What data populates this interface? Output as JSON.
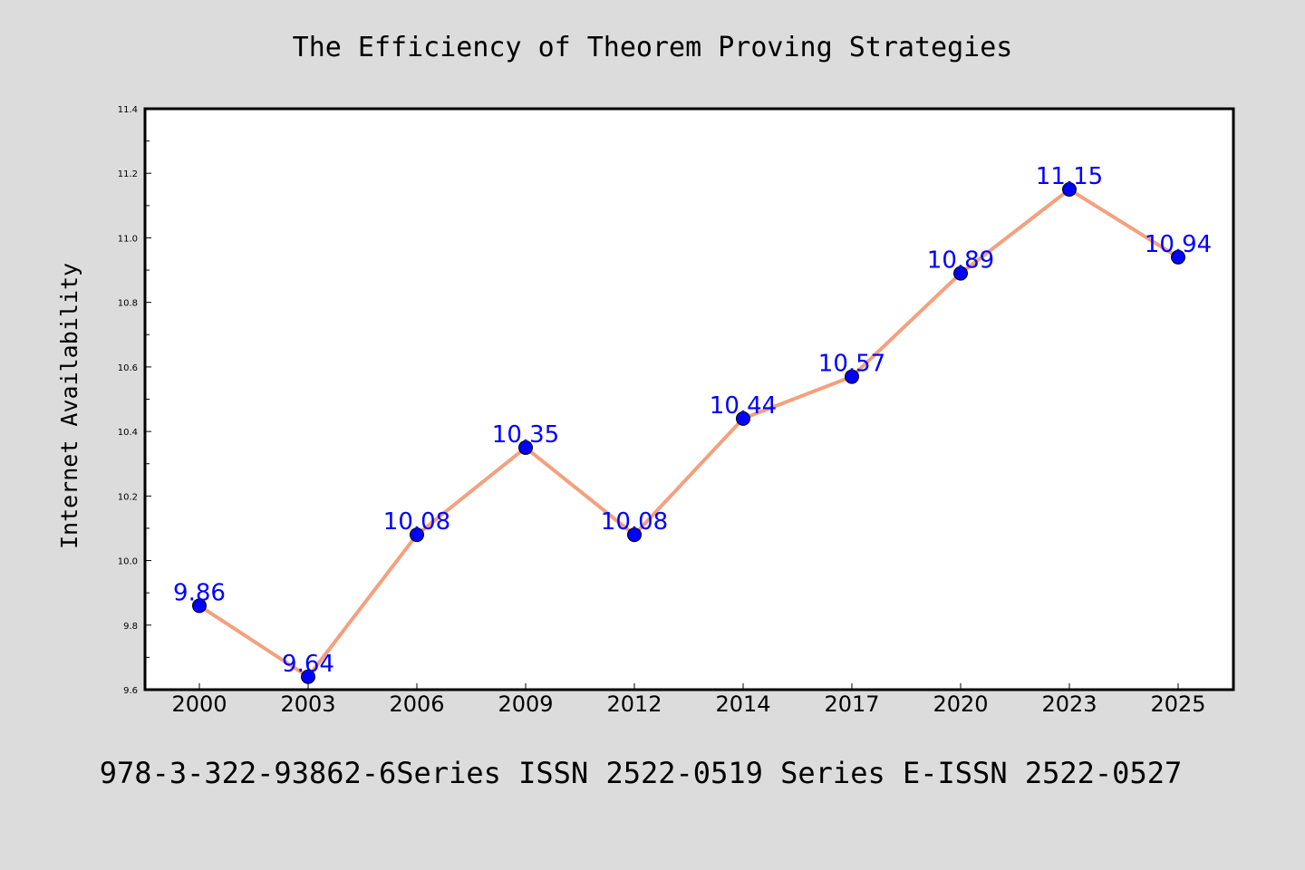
{
  "chart_data": {
    "type": "line",
    "title": "The Efficiency of Theorem Proving Strategies",
    "xlabel": "",
    "ylabel": "Internet Availability",
    "x": [
      "2000",
      "2003",
      "2006",
      "2009",
      "2012",
      "2014",
      "2017",
      "2020",
      "2023",
      "2025"
    ],
    "series": [
      {
        "values": [
          9.86,
          9.64,
          10.08,
          10.35,
          10.08,
          10.44,
          10.57,
          10.89,
          11.15,
          10.94
        ],
        "labels": [
          "9.86",
          "9.64",
          "10.08",
          "10.35",
          "10.08",
          "10.44",
          "10.57",
          "10.89",
          "11.15",
          "10.94"
        ],
        "line_color": "#f4a07e",
        "marker_color": "#0000ff",
        "label_color": "#0000ff"
      }
    ],
    "ylim": [
      9.6,
      11.4
    ],
    "yticks": [
      "9.6",
      "9.8",
      "10.0",
      "10.2",
      "10.4",
      "10.6",
      "10.8",
      "11.0",
      "11.2",
      "11.4"
    ],
    "grid": false,
    "legend": "none"
  },
  "footer": "978-3-322-93862-6Series ISSN 2522-0519 Series E-ISSN 2522-0527",
  "colors": {
    "background": "#dcdcdc",
    "plot_background": "#ffffff",
    "axes": "#000000"
  }
}
